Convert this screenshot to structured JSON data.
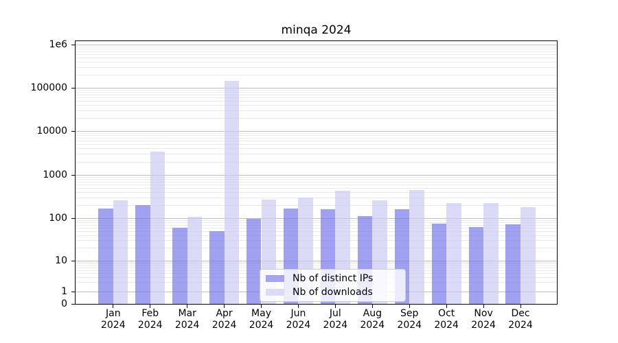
{
  "title": "minqa 2024",
  "colors": {
    "bar_ips": "rgba(111,111,234,0.65)",
    "bar_downloads": "rgba(200,200,244,0.65)",
    "bar_ips_solid": "#a4a4f1",
    "bar_downloads_solid": "#dbdbf8",
    "grid_major": "#bdbdbd",
    "grid_minor": "#eaeaea"
  },
  "chart_data": {
    "type": "bar",
    "title": "minqa 2024",
    "categories": [
      "Jan",
      "Feb",
      "Mar",
      "Apr",
      "May",
      "Jun",
      "Jul",
      "Aug",
      "Sep",
      "Oct",
      "Nov",
      "Dec"
    ],
    "year": "2024",
    "series": [
      {
        "name": "Nb of distinct IPs",
        "values": [
          170,
          200,
          59,
          49,
          97,
          170,
          160,
          112,
          163,
          74,
          62,
          72
        ]
      },
      {
        "name": "Nb of downloads",
        "values": [
          260,
          3400,
          107,
          145000,
          265,
          300,
          430,
          260,
          450,
          220,
          220,
          180
        ]
      }
    ],
    "yscale": "symlog",
    "ylim": [
      0,
      1200000
    ],
    "y_ticks": [
      {
        "label": "0",
        "value": 0
      },
      {
        "label": "1",
        "value": 1
      },
      {
        "label": "10",
        "value": 10
      },
      {
        "label": "100",
        "value": 100
      },
      {
        "label": "1000",
        "value": 1000
      },
      {
        "label": "10000",
        "value": 10000
      },
      {
        "label": "100000",
        "value": 100000
      },
      {
        "label": "1e6",
        "value": 1000000
      }
    ],
    "grid": "both",
    "legend_position": "lower center"
  }
}
